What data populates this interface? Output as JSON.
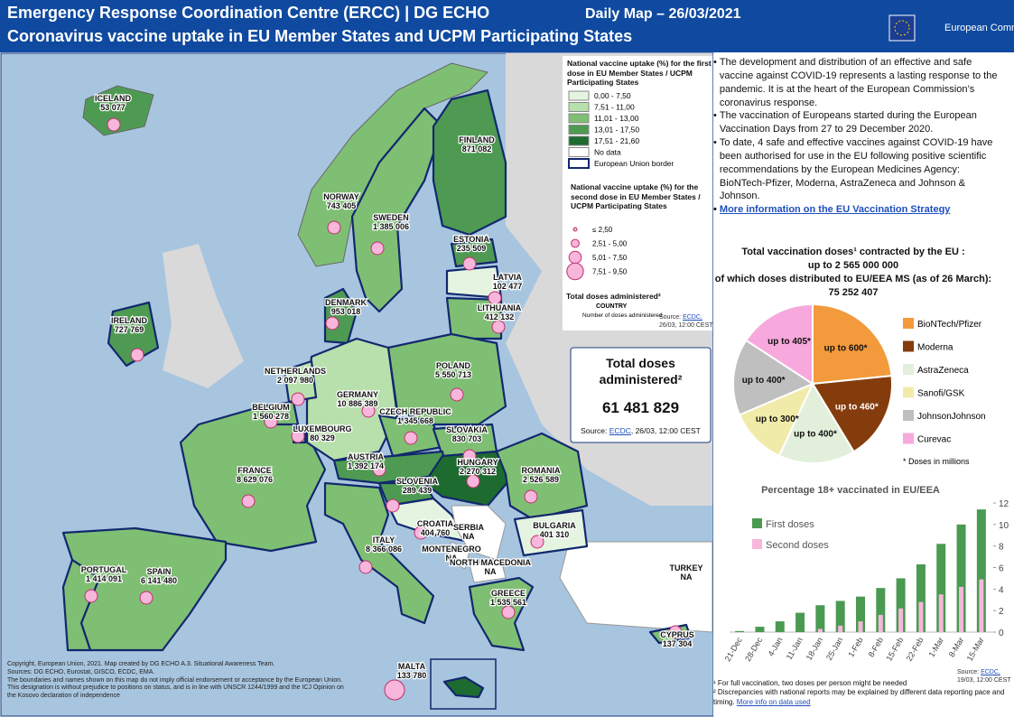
{
  "header": {
    "title": "Emergency Response Coordination Centre (ERCC) | DG ECHO",
    "date": "Daily Map – 26/03/2021",
    "subtitle": "Coronavirus vaccine uptake in EU Member States and UCPM Participating States",
    "logo": "European Commission"
  },
  "legend": {
    "first_title": "National vaccine uptake (%) for the first dose in EU Member States / UCPM Participating States",
    "first_items": [
      "0,00 - 7,50",
      "7,51 - 11,00",
      "11,01 - 13,00",
      "13,01 - 17,50",
      "17,51 - 21,60",
      "No data",
      "European Union border"
    ],
    "second_title": "National vaccine uptake (%) for the second dose in EU Member States / UCPM Participating States",
    "second_items": [
      "≤ 2,50",
      "2,51 - 5,00",
      "5,01 - 7,50",
      "7,51 - 9,50"
    ],
    "total_label": "Total doses administered²",
    "example_name": "COUNTRY",
    "example_value": "Number of doses administered",
    "source_prefix": "Source:",
    "source_link": "ECDC,",
    "source_date": "26/03, 12:00 CEST"
  },
  "total_box": {
    "title": "Total doses administered²",
    "value": "61 481 829",
    "source_prefix": "Source:",
    "source_link": "ECDC",
    "source_date": ", 26/03, 12:00 CEST"
  },
  "countries": [
    {
      "name": "ICELAND",
      "doses": "53 077"
    },
    {
      "name": "FINLAND",
      "doses": "871 082"
    },
    {
      "name": "NORWAY",
      "doses": "743 405"
    },
    {
      "name": "SWEDEN",
      "doses": "1 385 006"
    },
    {
      "name": "ESTONIA",
      "doses": "235 509"
    },
    {
      "name": "LATVIA",
      "doses": "102 477"
    },
    {
      "name": "LITHUANIA",
      "doses": "412 132"
    },
    {
      "name": "DENMARK",
      "doses": "953 018"
    },
    {
      "name": "IRELAND",
      "doses": "727 769"
    },
    {
      "name": "NETHERLANDS",
      "doses": "2 097 980"
    },
    {
      "name": "BELGIUM",
      "doses": "1 560 278"
    },
    {
      "name": "GERMANY",
      "doses": "10 886 389"
    },
    {
      "name": "LUXEMBOURG",
      "doses": "80 329"
    },
    {
      "name": "POLAND",
      "doses": "5 550 713"
    },
    {
      "name": "CZECH REPUBLIC",
      "doses": "1 345 668"
    },
    {
      "name": "SLOVAKIA",
      "doses": "830 703"
    },
    {
      "name": "AUSTRIA",
      "doses": "1 392 174"
    },
    {
      "name": "HUNGARY",
      "doses": "2 270 312"
    },
    {
      "name": "SLOVENIA",
      "doses": "289 439"
    },
    {
      "name": "FRANCE",
      "doses": "8 629 076"
    },
    {
      "name": "ROMANIA",
      "doses": "2 526 589"
    },
    {
      "name": "CROATIA",
      "doses": "404 760"
    },
    {
      "name": "SERBIA",
      "doses": "NA"
    },
    {
      "name": "BULGARIA",
      "doses": "401 310"
    },
    {
      "name": "MONTENEGRO",
      "doses": "NA"
    },
    {
      "name": "ITALY",
      "doses": "8 366 086"
    },
    {
      "name": "NORTH MACEDONIA",
      "doses": "NA"
    },
    {
      "name": "PORTUGAL",
      "doses": "1 414 091"
    },
    {
      "name": "SPAIN",
      "doses": "6 141 480"
    },
    {
      "name": "GREECE",
      "doses": "1 535 561"
    },
    {
      "name": "TURKEY",
      "doses": "NA"
    },
    {
      "name": "CYPRUS",
      "doses": "137 304"
    },
    {
      "name": "MALTA",
      "doses": "133 780"
    }
  ],
  "info": {
    "bullets": [
      "The development and distribution of an effective and safe vaccine against COVID-19 represents a lasting response to the pandemic. It is at the heart of the European Commission’s coronavirus response.",
      "The vaccination of Europeans started during the European Vaccination Days from 27 to 29 December 2020.",
      "To date, 4 safe and effective vaccines against COVID-19 have been authorised for use in the EU following positive scientific recommendations by the European Medicines Agency: BioNTech-Pfizer, Moderna, AstraZeneca and Johnson & Johnson."
    ],
    "link": "More information on the EU Vaccination Strategy"
  },
  "contracts": {
    "line1": "Total vaccination doses¹ contracted by the EU :",
    "line2": "up to 2 565 000 000",
    "line3": "of which doses distributed to EU/EEA MS (as of 26 March):",
    "line4": "75 252 407"
  },
  "chart_data": [
    {
      "type": "pie",
      "categories": [
        "BioNTech/Pfizer",
        "Moderna",
        "AstraZeneca",
        "Sanofi/GSK",
        "JohnsonJohnson",
        "Curevac"
      ],
      "values": [
        600,
        460,
        400,
        300,
        400,
        405
      ],
      "value_labels": [
        "up to 600*",
        "up to 460*",
        "up to 400*",
        "up to 300*",
        "up to 400*",
        "up to 405*"
      ],
      "colors": [
        "#f39a3c",
        "#843c0c",
        "#e2efda",
        "#f1ebaa",
        "#bfbfbf",
        "#f7a8dc"
      ],
      "note": "* Doses in millions"
    },
    {
      "type": "bar",
      "title": "Percentage 18+ vaccinated  in EU/EEA",
      "categories": [
        "21-Dec",
        "28-Dec",
        "4-Jan",
        "11-Jan",
        "18-Jan",
        "25-Jan",
        "1-Feb",
        "8-Feb",
        "15-Feb",
        "22-Feb",
        "1-Mar",
        "8-Mar",
        "15-Mar"
      ],
      "series": [
        {
          "name": "First doses",
          "color": "#4a9a52",
          "values": [
            0.1,
            0.5,
            1.0,
            1.8,
            2.5,
            2.9,
            3.3,
            4.1,
            5.0,
            6.3,
            8.2,
            10.0,
            11.4
          ]
        },
        {
          "name": "Second doses",
          "color": "#f7b6dc",
          "values": [
            0,
            0,
            0,
            0,
            0.3,
            0.6,
            1.0,
            1.6,
            2.2,
            2.8,
            3.5,
            4.2,
            4.9
          ]
        }
      ],
      "ylim": [
        0,
        12
      ],
      "yticks": [
        0,
        2,
        4,
        6,
        8,
        10,
        12
      ],
      "source_prefix": "Source:",
      "source_link": "ECDC,",
      "source_date": "19/03, 12:00 CEST"
    }
  ],
  "footnotes": [
    "¹ For full vaccination, two doses per person might be needed",
    "² Discrepancies with national reports may be explained by different data reporting pace and timing."
  ],
  "footnote_link": "More info on data used",
  "copyright": [
    "Copyright, European Union, 2021. Map created by DG ECHO A.3. Situational Awareness Team.",
    "Sources: DG ECHO, Eurostat, GISCO, ECDC, EMA.",
    "The boundaries and names shown on this map do not imply official endorsement or acceptance by the European Union. This designation is without prejudice to positions on status, and is in line with UNSCR 1244/1999 and the ICJ Opinion on the Kosovo declaration of independence"
  ]
}
